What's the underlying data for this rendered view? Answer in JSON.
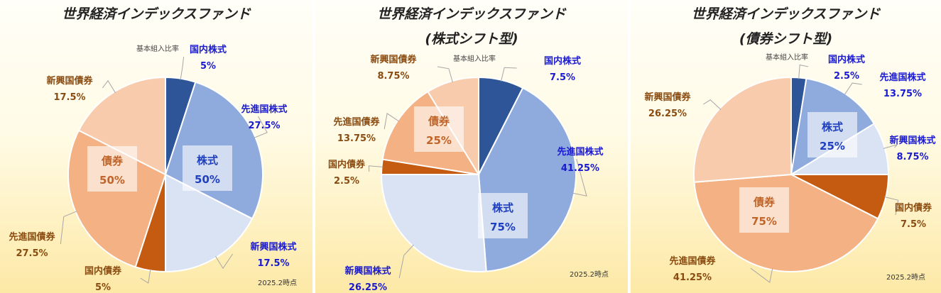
{
  "colors": {
    "domestic_stock": "#2e5597",
    "developed_stock": "#8faadc",
    "emerging_stock": "#dae3f3",
    "domestic_bond": "#c55a11",
    "developed_bond": "#f4b183",
    "emerging_bond": "#f8cbad",
    "stock_label": "#1a1ad0",
    "bond_label": "#8a4b10",
    "group_stock_text": "#1f3fbf",
    "group_bond_text": "#c0652a"
  },
  "labels": {
    "basis": "基本組入比率",
    "as_of": "2025.2時点"
  },
  "chart_data": [
    {
      "type": "pie",
      "title": "世界経済インデックスファンド",
      "subtitle": "",
      "slices": [
        {
          "label": "国内株式",
          "value": 5,
          "pct_text": "5%",
          "color_key": "domestic_stock",
          "group": "stock"
        },
        {
          "label": "先進国株式",
          "value": 27.5,
          "pct_text": "27.5%",
          "color_key": "developed_stock",
          "group": "stock"
        },
        {
          "label": "新興国株式",
          "value": 17.5,
          "pct_text": "17.5%",
          "color_key": "emerging_stock",
          "group": "stock"
        },
        {
          "label": "国内債券",
          "value": 5,
          "pct_text": "5%",
          "color_key": "domestic_bond",
          "group": "bond"
        },
        {
          "label": "先進国債券",
          "value": 27.5,
          "pct_text": "27.5%",
          "color_key": "developed_bond",
          "group": "bond"
        },
        {
          "label": "新興国債券",
          "value": 17.5,
          "pct_text": "17.5%",
          "color_key": "emerging_bond",
          "group": "bond"
        }
      ],
      "groups": [
        {
          "label": "株式",
          "value": 50,
          "pct_text": "50%"
        },
        {
          "label": "債券",
          "value": 50,
          "pct_text": "50%"
        }
      ]
    },
    {
      "type": "pie",
      "title": "世界経済インデックスファンド",
      "subtitle": "(株式シフト型)",
      "slices": [
        {
          "label": "国内株式",
          "value": 7.5,
          "pct_text": "7.5%",
          "color_key": "domestic_stock",
          "group": "stock"
        },
        {
          "label": "先進国株式",
          "value": 41.25,
          "pct_text": "41.25%",
          "color_key": "developed_stock",
          "group": "stock"
        },
        {
          "label": "新興国株式",
          "value": 26.25,
          "pct_text": "26.25%",
          "color_key": "emerging_stock",
          "group": "stock"
        },
        {
          "label": "国内債券",
          "value": 2.5,
          "pct_text": "2.5%",
          "color_key": "domestic_bond",
          "group": "bond"
        },
        {
          "label": "先進国債券",
          "value": 13.75,
          "pct_text": "13.75%",
          "color_key": "developed_bond",
          "group": "bond"
        },
        {
          "label": "新興国債券",
          "value": 8.75,
          "pct_text": "8.75%",
          "color_key": "emerging_bond",
          "group": "bond"
        }
      ],
      "groups": [
        {
          "label": "株式",
          "value": 75,
          "pct_text": "75%"
        },
        {
          "label": "債券",
          "value": 25,
          "pct_text": "25%"
        }
      ]
    },
    {
      "type": "pie",
      "title": "世界経済インデックスファンド",
      "subtitle": "(債券シフト型)",
      "slices": [
        {
          "label": "国内株式",
          "value": 2.5,
          "pct_text": "2.5%",
          "color_key": "domestic_stock",
          "group": "stock"
        },
        {
          "label": "先進国株式",
          "value": 13.75,
          "pct_text": "13.75%",
          "color_key": "developed_stock",
          "group": "stock"
        },
        {
          "label": "新興国株式",
          "value": 8.75,
          "pct_text": "8.75%",
          "color_key": "emerging_stock",
          "group": "stock"
        },
        {
          "label": "国内債券",
          "value": 7.5,
          "pct_text": "7.5%",
          "color_key": "domestic_bond",
          "group": "bond"
        },
        {
          "label": "先進国債券",
          "value": 41.25,
          "pct_text": "41.25%",
          "color_key": "developed_bond",
          "group": "bond"
        },
        {
          "label": "新興国債券",
          "value": 26.25,
          "pct_text": "26.25%",
          "color_key": "emerging_bond",
          "group": "bond"
        }
      ],
      "groups": [
        {
          "label": "株式",
          "value": 25,
          "pct_text": "25%"
        },
        {
          "label": "債券",
          "value": 75,
          "pct_text": "75%"
        }
      ]
    }
  ]
}
